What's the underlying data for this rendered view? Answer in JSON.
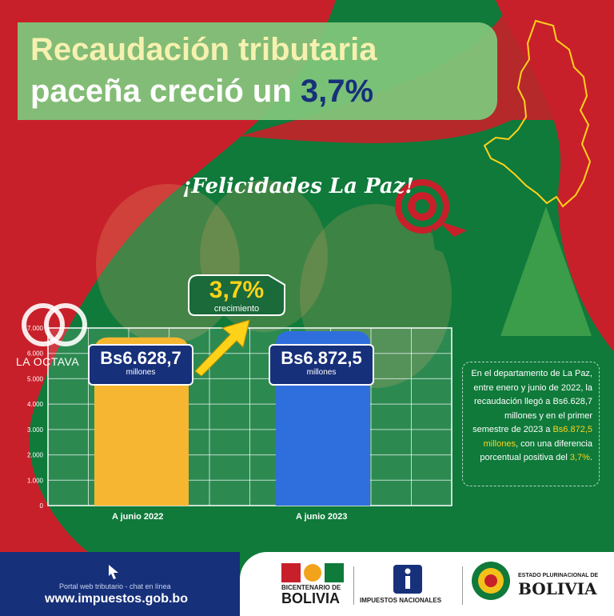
{
  "title": {
    "line1": "Recaudación tributaria",
    "line2_prefix": "paceña creció un ",
    "line2_pct": "3,7%"
  },
  "greeting": "¡Felicidades La Paz!",
  "growth_badge": {
    "value": "3,7%",
    "label": "crecimiento"
  },
  "watermark": "LA OCTAVA",
  "value_labels": [
    {
      "value": "Bs6.628,7",
      "unit": "millones"
    },
    {
      "value": "Bs6.872,5",
      "unit": "millones"
    }
  ],
  "info_text": {
    "part1": "En el departamento de La Paz, entre enero y junio de 2022, la recaudación llegó a Bs6.628,7 millones y en el primer semestre de 2023 a ",
    "hl1": "Bs6.872,5 millones",
    "part2": ", con una diferencia porcentual positiva del ",
    "hl2": "3,7%",
    "part3": "."
  },
  "footer": {
    "portal": "Portal web tributario - chat en línea",
    "website": "www.impuestos.gob.bo",
    "bicentenario_line1": "BICENTENARIO DE",
    "bicentenario_line2": "BOLIVIA",
    "impuestos": "IMPUESTOS NACIONALES",
    "estado": "ESTADO PLURINACIONAL DE",
    "bolivia": "BOLIVIA"
  },
  "colors": {
    "green": "#0f7a3a",
    "red": "#c8202a",
    "navy": "#17307a",
    "yellow": "#ffd21a"
  },
  "chart_data": {
    "type": "bar",
    "categories": [
      "A junio 2022",
      "A junio 2023"
    ],
    "series": [
      {
        "values": [
          6628.7,
          6872.5
        ]
      }
    ],
    "yticks": [
      0,
      1000,
      2000,
      3000,
      4000,
      5000,
      6000,
      7000
    ],
    "ytick_labels": [
      "0",
      "1.000",
      "2.000",
      "3.000",
      "4.000",
      "5.000",
      "6.000",
      "7.000"
    ],
    "ylim": [
      0,
      7000
    ],
    "bar_colors": [
      "#f6b631",
      "#2f6fdd"
    ],
    "grid": true
  }
}
